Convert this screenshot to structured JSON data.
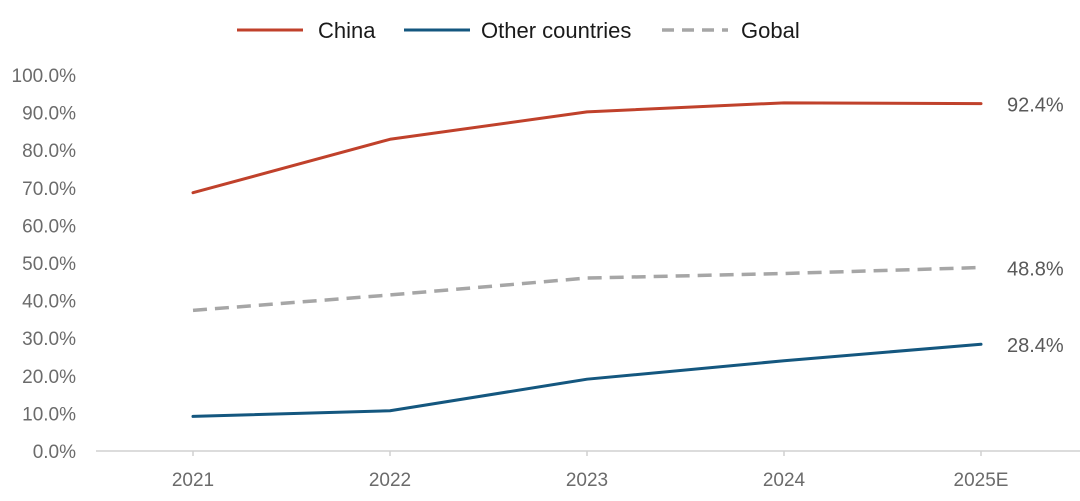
{
  "chart_data": {
    "type": "line",
    "title": "",
    "xlabel": "",
    "ylabel": "",
    "categories": [
      "2021",
      "2022",
      "2023",
      "2024",
      "2025E"
    ],
    "ylim": [
      0,
      100
    ],
    "yticks": [
      0,
      10,
      20,
      30,
      40,
      50,
      60,
      70,
      80,
      90,
      100
    ],
    "ytick_labels": [
      "0.0%",
      "10.0%",
      "20.0%",
      "30.0%",
      "40.0%",
      "50.0%",
      "60.0%",
      "70.0%",
      "80.0%",
      "90.0%",
      "100.0%"
    ],
    "grid": false,
    "legend_position": "top-center",
    "series": [
      {
        "name": "China",
        "values": [
          68.7,
          82.9,
          90.2,
          92.6,
          92.4
        ],
        "color": "#c0412b",
        "style": "solid",
        "end_label": "92.4%"
      },
      {
        "name": "Other countries",
        "values": [
          9.2,
          10.7,
          19.1,
          24.0,
          28.4
        ],
        "color": "#14577f",
        "style": "solid",
        "end_label": "28.4%"
      },
      {
        "name": "Gobal",
        "values": [
          37.4,
          41.5,
          46.0,
          47.2,
          48.8
        ],
        "color": "#a6a6a6",
        "style": "dashed",
        "end_label": "48.8%"
      }
    ]
  }
}
